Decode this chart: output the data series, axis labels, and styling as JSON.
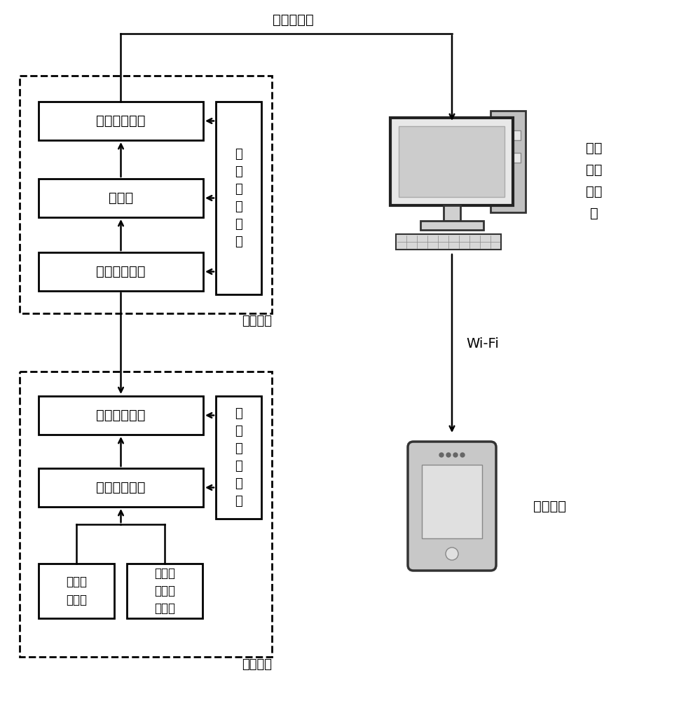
{
  "bg_color": "#ffffff",
  "text_color": "#000000",
  "ethernet_label": "工业以太网",
  "monitor_label": "上位\n机监\n测中\n心",
  "wifi_label": "Wi-Fi",
  "handheld_label": "手持终端",
  "analysis_label": "分析节点",
  "collect_label": "采集节点",
  "box2_comm": "第二通信模块",
  "box2_mem": "存储器",
  "box2_cpu": "第二微处理器",
  "box2_power": "第\n二\n电\n源\n模\n块",
  "box1_comm": "第一通信模块",
  "box1_cpu": "第一微处理器",
  "box1_power": "第\n一\n电\n源\n模\n块",
  "box_vibration": "振动感\n知节点",
  "box_audio": "分布式\n音频感\n知节点"
}
